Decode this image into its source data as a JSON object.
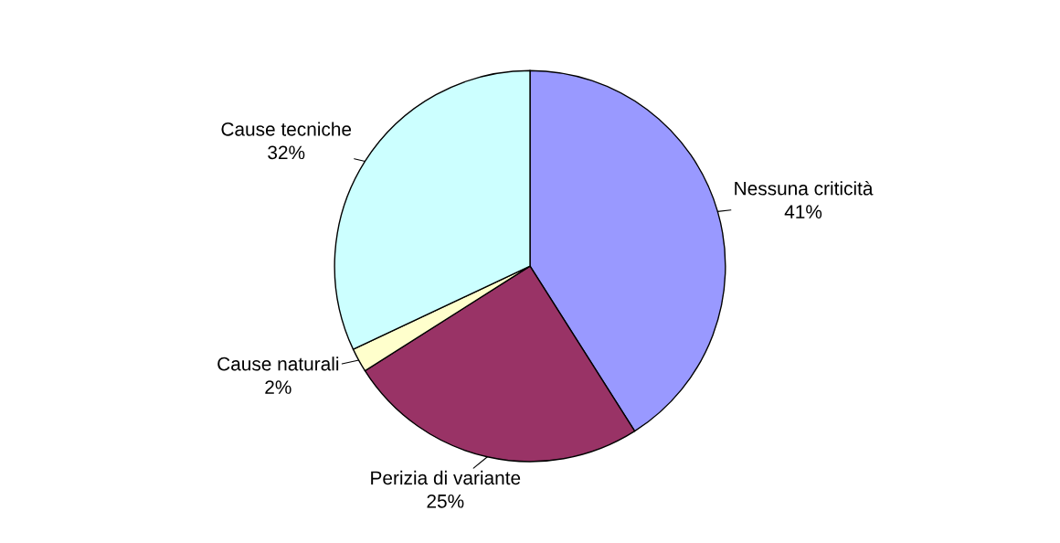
{
  "chart_data": {
    "type": "pie",
    "categories": [
      "Nessuna criticità",
      "Perizia di variante",
      "Cause naturali",
      "Cause tecniche"
    ],
    "values": [
      41,
      25,
      2,
      32
    ],
    "value_labels": [
      "41%",
      "25%",
      "2%",
      "32%"
    ],
    "colors": [
      "#9999ff",
      "#993366",
      "#ffffcc",
      "#ccffff"
    ],
    "legend": false
  }
}
